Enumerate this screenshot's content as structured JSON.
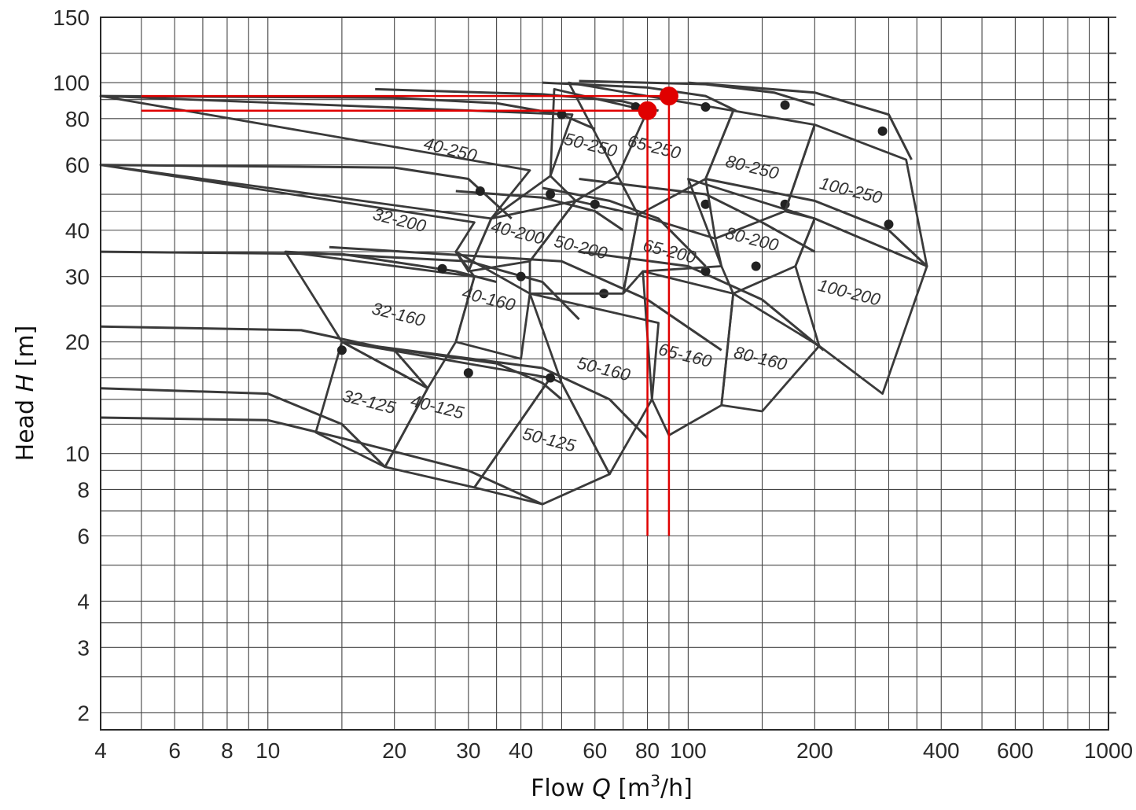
{
  "chart_data": {
    "type": "line",
    "title": "",
    "xlabel": {
      "prefix": "Flow ",
      "var": "Q",
      "unit_pre": " [m",
      "sup": "3",
      "unit_post": "/h]"
    },
    "ylabel": {
      "prefix": "Head ",
      "var": "H",
      "unit": " [m]"
    },
    "x_scale": "log",
    "y_scale": "log",
    "xlim": [
      4,
      1000
    ],
    "ylim": [
      1.8,
      150
    ],
    "grid": true,
    "x_ticks": [
      {
        "v": 4,
        "label": "4"
      },
      {
        "v": 6,
        "label": "6"
      },
      {
        "v": 8,
        "label": "8"
      },
      {
        "v": 10,
        "label": "10"
      },
      {
        "v": 20,
        "label": "20"
      },
      {
        "v": 30,
        "label": "30"
      },
      {
        "v": 40,
        "label": "40"
      },
      {
        "v": 60,
        "label": "60"
      },
      {
        "v": 80,
        "label": "80"
      },
      {
        "v": 100,
        "label": "100"
      },
      {
        "v": 200,
        "label": "200"
      },
      {
        "v": 400,
        "label": "400"
      },
      {
        "v": 600,
        "label": "600"
      },
      {
        "v": 1000,
        "label": "1000"
      }
    ],
    "y_ticks": [
      {
        "v": 2,
        "label": "2"
      },
      {
        "v": 3,
        "label": "3"
      },
      {
        "v": 4,
        "label": "4"
      },
      {
        "v": 6,
        "label": "6"
      },
      {
        "v": 8,
        "label": "8"
      },
      {
        "v": 10,
        "label": "10"
      },
      {
        "v": 20,
        "label": "20"
      },
      {
        "v": 30,
        "label": "30"
      },
      {
        "v": 40,
        "label": "40"
      },
      {
        "v": 60,
        "label": "60"
      },
      {
        "v": 80,
        "label": "80"
      },
      {
        "v": 100,
        "label": "100"
      },
      {
        "v": 150,
        "label": "150"
      }
    ],
    "grid_x": [
      5,
      6,
      7,
      8,
      9,
      10,
      15,
      20,
      25,
      30,
      35,
      40,
      45,
      50,
      60,
      70,
      80,
      90,
      100,
      150,
      200,
      250,
      300,
      350,
      400,
      500,
      600,
      700,
      800,
      900,
      1000
    ],
    "grid_y": [
      2,
      2.5,
      3,
      3.5,
      4,
      5,
      6,
      7,
      8,
      9,
      10,
      12,
      14,
      16,
      18,
      20,
      25,
      30,
      35,
      40,
      45,
      50,
      60,
      70,
      80,
      90,
      100,
      120,
      150
    ],
    "regions": [
      {
        "name": "32-125",
        "points": [
          [
            15,
            20
          ],
          [
            24,
            15
          ],
          [
            19,
            9.2
          ],
          [
            13,
            11.4
          ]
        ],
        "bep": [
          15,
          19
        ]
      },
      {
        "name": "40-125",
        "points": [
          [
            15,
            20
          ],
          [
            47,
            16
          ],
          [
            31,
            8.1
          ],
          [
            19,
            9.2
          ],
          [
            24,
            15
          ]
        ],
        "bep": [
          30,
          16.5
        ]
      },
      {
        "name": "50-125",
        "points": [
          [
            47,
            16
          ],
          [
            50,
            15.5
          ],
          [
            65,
            8.8
          ],
          [
            45,
            7.3
          ],
          [
            31,
            8.1
          ]
        ],
        "bep": [
          47,
          16
        ]
      },
      {
        "name": "32-160",
        "points": [
          [
            11,
            35
          ],
          [
            31,
            30
          ],
          [
            28,
            20
          ],
          [
            24,
            15
          ],
          [
            15,
            20
          ]
        ],
        "bep": [
          26,
          31.5
        ]
      },
      {
        "name": "40-160",
        "points": [
          [
            28,
            35
          ],
          [
            42,
            27
          ],
          [
            40,
            18
          ],
          [
            28,
            20
          ],
          [
            31,
            30
          ]
        ],
        "bep": [
          40,
          30
        ]
      },
      {
        "name": "50-160",
        "points": [
          [
            42,
            27
          ],
          [
            85,
            22.5
          ],
          [
            82,
            14
          ],
          [
            65,
            8.8
          ],
          [
            50,
            15.5
          ]
        ],
        "bep": [
          63,
          27
        ]
      },
      {
        "name": "65-160",
        "points": [
          [
            78,
            31
          ],
          [
            128,
            27
          ],
          [
            120,
            13.5
          ],
          [
            90,
            11.2
          ],
          [
            82,
            14
          ]
        ],
        "bep": [
          110,
          31
        ]
      },
      {
        "name": "80-160",
        "points": [
          [
            128,
            27
          ],
          [
            205,
            19.5
          ],
          [
            150,
            13
          ],
          [
            120,
            13.5
          ]
        ],
        "bep": [
          145,
          32
        ]
      },
      {
        "name": "32-200",
        "points": [
          [
            4,
            60
          ],
          [
            34,
            43
          ],
          [
            30,
            31
          ],
          [
            28,
            35
          ],
          [
            31,
            42
          ]
        ],
        "bep": [
          32,
          51
        ]
      },
      {
        "name": "40-200",
        "points": [
          [
            34,
            43
          ],
          [
            54,
            48
          ],
          [
            42,
            33
          ],
          [
            30,
            31
          ]
        ],
        "bep": [
          47,
          50
        ]
      },
      {
        "name": "50-200",
        "points": [
          [
            54,
            48
          ],
          [
            76,
            44
          ],
          [
            70,
            27
          ],
          [
            42,
            27
          ],
          [
            42,
            33
          ]
        ],
        "bep": [
          60,
          47
        ]
      },
      {
        "name": "65-200",
        "points": [
          [
            76,
            44
          ],
          [
            116,
            38
          ],
          [
            120,
            32
          ],
          [
            78,
            31
          ],
          [
            70,
            27
          ]
        ],
        "bep": [
          110,
          47
        ]
      },
      {
        "name": "80-200",
        "points": [
          [
            100,
            55
          ],
          [
            200,
            43
          ],
          [
            180,
            32
          ],
          [
            128,
            27
          ],
          [
            120,
            32
          ]
        ],
        "bep": [
          170,
          47
        ]
      },
      {
        "name": "100-200",
        "points": [
          [
            200,
            43
          ],
          [
            370,
            32
          ],
          [
            290,
            14.5
          ],
          [
            205,
            19.5
          ],
          [
            180,
            32
          ]
        ],
        "bep": [
          300,
          41.5
        ]
      },
      {
        "name": "40-250",
        "points": [
          [
            4,
            92
          ],
          [
            53,
            82
          ],
          [
            47,
            56
          ],
          [
            34,
            43
          ],
          [
            42,
            58
          ]
        ],
        "bep": [
          50,
          82
        ]
      },
      {
        "name": "50-250",
        "points": [
          [
            48,
            96
          ],
          [
            80,
            84
          ],
          [
            68,
            56
          ],
          [
            54,
            48
          ],
          [
            47,
            56
          ]
        ],
        "bep": [
          75,
          86
        ]
      },
      {
        "name": "65-250",
        "points": [
          [
            52,
            100
          ],
          [
            128,
            84
          ],
          [
            110,
            55
          ],
          [
            76,
            44
          ],
          [
            68,
            56
          ]
        ],
        "bep": [
          110,
          86
        ]
      },
      {
        "name": "80-250",
        "points": [
          [
            128,
            84
          ],
          [
            200,
            77
          ],
          [
            170,
            45
          ],
          [
            116,
            38
          ],
          [
            110,
            55
          ]
        ],
        "bep": [
          170,
          87
        ]
      },
      {
        "name": "100-250",
        "points": [
          [
            200,
            77
          ],
          [
            330,
            62
          ],
          [
            370,
            32
          ],
          [
            200,
            43
          ],
          [
            170,
            45
          ]
        ],
        "bep": [
          290,
          74
        ]
      }
    ],
    "curves": [
      {
        "points": [
          [
            4,
            92
          ],
          [
            20,
            91
          ],
          [
            35,
            88
          ],
          [
            50,
            82
          ],
          [
            60,
            75
          ]
        ]
      },
      {
        "points": [
          [
            18,
            96
          ],
          [
            45,
            93
          ],
          [
            70,
            89
          ],
          [
            85,
            84
          ]
        ]
      },
      {
        "points": [
          [
            45,
            100
          ],
          [
            80,
            97
          ],
          [
            110,
            92
          ],
          [
            130,
            84
          ]
        ]
      },
      {
        "points": [
          [
            55,
            101
          ],
          [
            110,
            99
          ],
          [
            160,
            94
          ],
          [
            200,
            87
          ]
        ]
      },
      {
        "points": [
          [
            100,
            100
          ],
          [
            200,
            94
          ],
          [
            300,
            82
          ],
          [
            340,
            62
          ]
        ]
      },
      {
        "points": [
          [
            4,
            60
          ],
          [
            20,
            59
          ],
          [
            30,
            55
          ],
          [
            38,
            43
          ]
        ]
      },
      {
        "points": [
          [
            28,
            51
          ],
          [
            45,
            49
          ],
          [
            60,
            45
          ],
          [
            70,
            40
          ]
        ]
      },
      {
        "points": [
          [
            45,
            52
          ],
          [
            65,
            48
          ],
          [
            85,
            43
          ],
          [
            110,
            32
          ]
        ]
      },
      {
        "points": [
          [
            55,
            55
          ],
          [
            110,
            50
          ],
          [
            150,
            42
          ],
          [
            200,
            35
          ]
        ]
      },
      {
        "points": [
          [
            110,
            55
          ],
          [
            200,
            48
          ],
          [
            300,
            40
          ],
          [
            370,
            32
          ]
        ]
      },
      {
        "points": [
          [
            4,
            35
          ],
          [
            15,
            34.5
          ],
          [
            28,
            31
          ],
          [
            35,
            29
          ]
        ]
      },
      {
        "points": [
          [
            11,
            35
          ],
          [
            30,
            33
          ],
          [
            45,
            29
          ],
          [
            55,
            23
          ]
        ]
      },
      {
        "points": [
          [
            14,
            36
          ],
          [
            50,
            33
          ],
          [
            80,
            26
          ],
          [
            120,
            19
          ]
        ]
      },
      {
        "points": [
          [
            55,
            35
          ],
          [
            100,
            32
          ],
          [
            150,
            26
          ],
          [
            210,
            19
          ]
        ]
      },
      {
        "points": [
          [
            4,
            22
          ],
          [
            12,
            21.5
          ],
          [
            20,
            19
          ],
          [
            24,
            15
          ]
        ]
      },
      {
        "points": [
          [
            15,
            20
          ],
          [
            35,
            17.5
          ],
          [
            45,
            15.5
          ],
          [
            50,
            14
          ]
        ]
      },
      {
        "points": [
          [
            15,
            20
          ],
          [
            45,
            17
          ],
          [
            65,
            14
          ],
          [
            80,
            11
          ]
        ]
      },
      {
        "points": [
          [
            4,
            15
          ],
          [
            10,
            14.5
          ],
          [
            15,
            12
          ],
          [
            19,
            9.2
          ]
        ]
      },
      {
        "points": [
          [
            4,
            12.5
          ],
          [
            10,
            12.3
          ],
          [
            15,
            11
          ],
          [
            30,
            9
          ],
          [
            45,
            7.3
          ]
        ]
      }
    ],
    "annotations": {
      "color": "#e00000",
      "points": [
        {
          "x": 80,
          "y": 84
        },
        {
          "x": 90,
          "y": 92
        }
      ],
      "hlines": [
        {
          "y": 92,
          "x0": 5,
          "x1": 90
        },
        {
          "y": 84,
          "x0": 5,
          "x1": 80
        }
      ],
      "vlines": [
        {
          "x": 80,
          "y0": 6,
          "y1": 84
        },
        {
          "x": 90,
          "y0": 6,
          "y1": 92
        }
      ]
    }
  }
}
